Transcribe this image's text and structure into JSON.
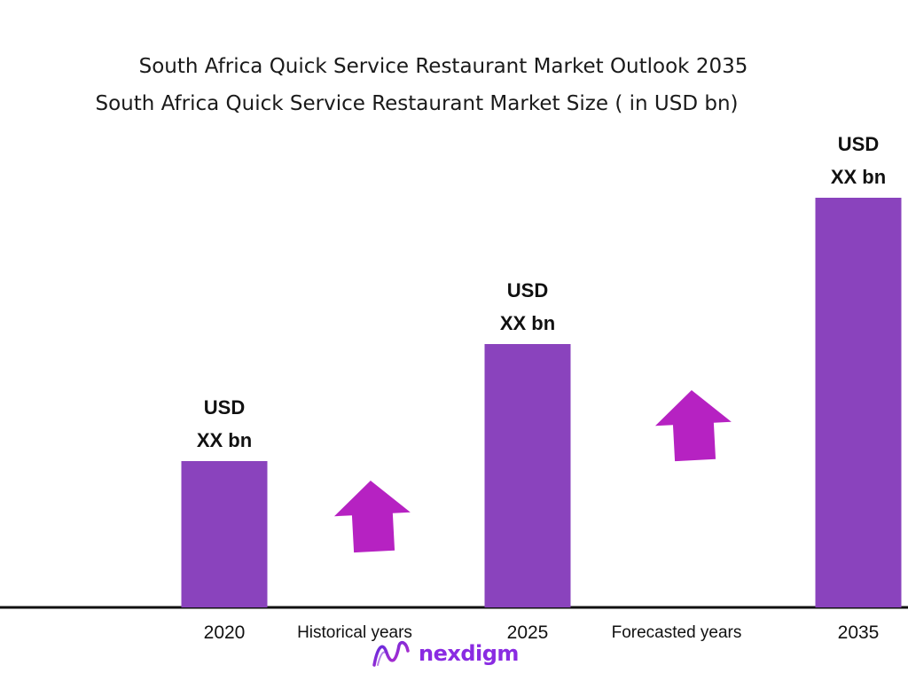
{
  "title": "South Africa  Quick Service Restaurant Market Outlook 2035",
  "subtitle": "South Africa  Quick Service Restaurant Market Size  ( in USD bn)",
  "colors": {
    "bar": "#8a43bd",
    "arrow": "#b622c2",
    "axis": "#111111"
  },
  "chart_data": {
    "type": "bar",
    "categories": [
      "2020",
      "2025",
      "2035"
    ],
    "values": [
      1.0,
      1.8,
      2.8
    ],
    "value_labels": [
      [
        "USD",
        "XX bn"
      ],
      [
        "USD",
        "XX bn"
      ],
      [
        "USD",
        "XX bn"
      ]
    ],
    "period_labels": [
      "Historical years",
      "Forecasted years"
    ],
    "grid": false,
    "legend": "none"
  },
  "logo": {
    "text": "nexdigm",
    "icon": "nexdigm-logo-icon"
  }
}
